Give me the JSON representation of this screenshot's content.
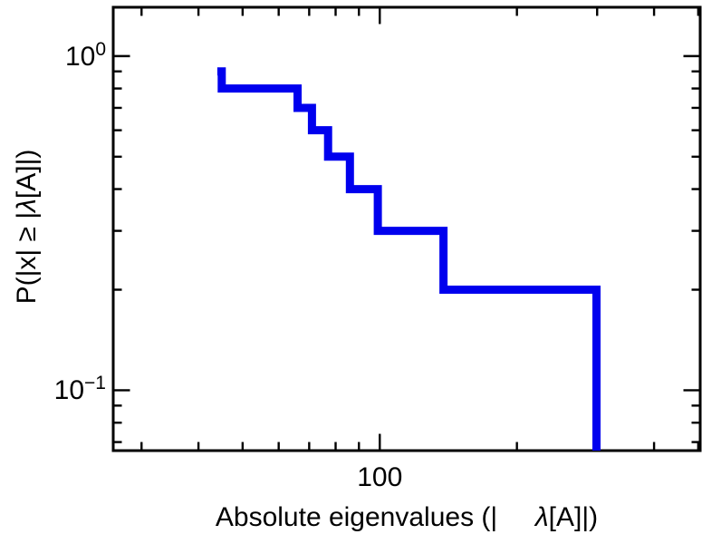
{
  "figure": {
    "background": "#ffffff",
    "frame_color": "#000000"
  },
  "chart_data": {
    "type": "line",
    "subtype": "step-survival-function-loglog",
    "title": "",
    "xlabel": "Absolute eigenvalues (|λ[A]|)",
    "ylabel": "P(|x| ≥ |λ[A]|)",
    "xlabel_prefix": "Absolute eigenvalues (|",
    "xlabel_gap": "     ",
    "lambda": "λ",
    "xlabel_suffix": "[A]|)",
    "ylabel_prefix": "P(|x| ≥ |",
    "ylabel_suffix": "[A]|)",
    "x_scale": "log",
    "y_scale": "log",
    "x_range": [
      26,
      505
    ],
    "y_range": [
      0.066,
      1.4
    ],
    "grid": false,
    "legend": "none",
    "x_ticks_major": [
      {
        "value": 100,
        "label": "100"
      }
    ],
    "x_ticks_minor": [
      30,
      40,
      50,
      60,
      70,
      80,
      90,
      200,
      300,
      400,
      500
    ],
    "y_ticks_major": [
      {
        "value": 1,
        "base": "10",
        "exp": "0"
      },
      {
        "value": 0.1,
        "base": "10",
        "exp": "−1"
      }
    ],
    "y_ticks_minor": [
      0.07,
      0.08,
      0.09,
      0.2,
      0.3,
      0.4,
      0.5,
      0.6,
      0.7,
      0.8,
      0.9
    ],
    "eigenvalues_estimated": [
      45,
      66,
      71,
      77,
      86,
      99,
      138,
      299
    ],
    "p_levels": [
      0.9,
      0.8,
      0.7,
      0.6,
      0.5,
      0.4,
      0.3,
      0.2
    ],
    "series": [
      {
        "name": "eigenvalue-ccdf-step-line",
        "color": "#0000ee",
        "line_width": 9,
        "path": [
          {
            "x": 44,
            "p": 0.9
          },
          {
            "x": 45,
            "p": 0.9
          },
          {
            "x": 45,
            "p": 0.8
          },
          {
            "x": 66,
            "p": 0.8
          },
          {
            "x": 66,
            "p": 0.7
          },
          {
            "x": 71,
            "p": 0.7
          },
          {
            "x": 71,
            "p": 0.6
          },
          {
            "x": 77,
            "p": 0.6
          },
          {
            "x": 77,
            "p": 0.5
          },
          {
            "x": 86,
            "p": 0.5
          },
          {
            "x": 86,
            "p": 0.4
          },
          {
            "x": 99,
            "p": 0.4
          },
          {
            "x": 99,
            "p": 0.3
          },
          {
            "x": 138,
            "p": 0.3
          },
          {
            "x": 138,
            "p": 0.2
          },
          {
            "x": 299,
            "p": 0.2
          },
          {
            "x": 299,
            "p": 0.066
          }
        ]
      }
    ]
  }
}
